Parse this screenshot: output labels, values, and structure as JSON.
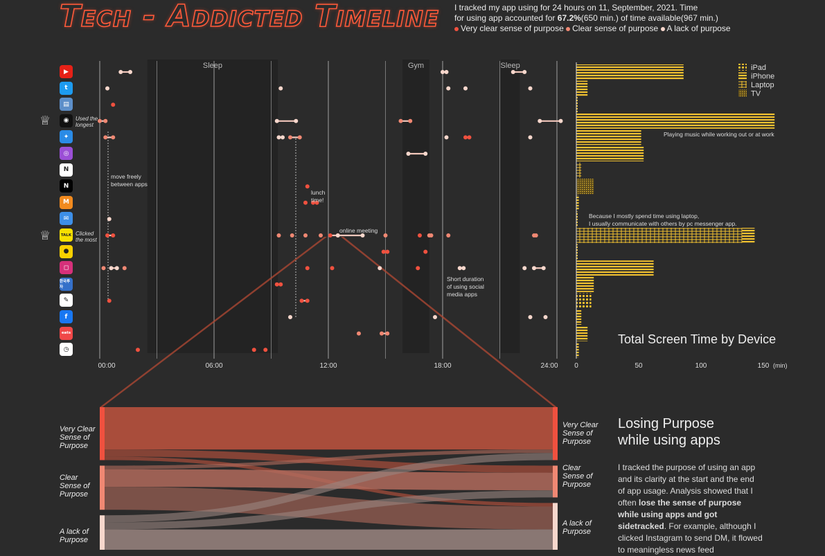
{
  "title": "Tech - Addicted Timeline",
  "intro": {
    "line1": "I tracked my app using for 24 hours on 11, September, 2021. Time",
    "line2_pre": "for using app accounted for ",
    "line2_bold": "67.2%",
    "line2_post": "(650 min.) of time available(967 min.)",
    "legend": [
      {
        "label": "Very clear sense of purpose",
        "color": "#f0513f"
      },
      {
        "label": "Clear sense of purpose",
        "color": "#f08873"
      },
      {
        "label": "A lack of purpose",
        "color": "#f7d7cc"
      }
    ]
  },
  "apps": [
    {
      "name": "YouTube",
      "icon": "youtube-icon",
      "bg": "#e62117",
      "glyph": "▶"
    },
    {
      "name": "Twitter",
      "icon": "twitter-icon",
      "bg": "#1d9bf0",
      "glyph": "t"
    },
    {
      "name": "Bus",
      "icon": "bus-icon",
      "bg": "#5d8fc9",
      "glyph": "▤"
    },
    {
      "name": "Spotify",
      "icon": "spotify-icon",
      "bg": "#111111",
      "glyph": "◉"
    },
    {
      "name": "Safari",
      "icon": "safari-icon",
      "bg": "#2a8be6",
      "glyph": "✦"
    },
    {
      "name": "Podcasts",
      "icon": "podcast-icon",
      "bg": "#9b4fd6",
      "glyph": "◎"
    },
    {
      "name": "Notion",
      "icon": "notion-icon",
      "bg": "#ffffff",
      "glyph": "N"
    },
    {
      "name": "Netflix",
      "icon": "netflix-icon",
      "bg": "#000000",
      "glyph": "N"
    },
    {
      "name": "Market",
      "icon": "market-icon",
      "bg": "#f28a1e",
      "glyph": "M"
    },
    {
      "name": "Mail",
      "icon": "mail-icon",
      "bg": "#3d8fe8",
      "glyph": "✉"
    },
    {
      "name": "KakaoTalk",
      "icon": "kakaotalk-icon",
      "bg": "#f9e000",
      "glyph": "TALK"
    },
    {
      "name": "KakaoMap",
      "icon": "map-pin-icon",
      "bg": "#f9d100",
      "glyph": "●"
    },
    {
      "name": "Instagram",
      "icon": "instagram-icon",
      "bg": "#d6307a",
      "glyph": "◻"
    },
    {
      "name": "Korea Invest",
      "icon": "invest-icon",
      "bg": "#3470c9",
      "glyph": "한국투자"
    },
    {
      "name": "Notes",
      "icon": "notes-icon",
      "bg": "#ffffff",
      "glyph": "✎"
    },
    {
      "name": "Facebook",
      "icon": "facebook-icon",
      "bg": "#1877f2",
      "glyph": "f"
    },
    {
      "name": "Shopping eats",
      "icon": "eats-icon",
      "bg": "#f04848",
      "glyph": "eats"
    },
    {
      "name": "Clock",
      "icon": "clock-icon",
      "bg": "#ffffff",
      "glyph": "◷"
    }
  ],
  "side_notes": [
    {
      "text1": "Used the",
      "text2": "longest",
      "row": 3
    },
    {
      "text1": "Clicked",
      "text2": "the most",
      "row": 10
    }
  ],
  "regions": [
    {
      "label": "Sleep",
      "start": 2.5,
      "end": 9.35
    },
    {
      "label": "Gym",
      "start": 15.9,
      "end": 17.3
    },
    {
      "label": "Sleep",
      "start": 21.05,
      "end": 22.05
    }
  ],
  "x_ticks": [
    "00:00",
    "06:00",
    "12:00",
    "18:00",
    "24:00"
  ],
  "annotations": [
    {
      "text1": "move freely",
      "text2": "between apps",
      "text3": ""
    },
    {
      "text1": "lunch",
      "text2": "time!",
      "text3": ""
    },
    {
      "text1": "online meeting",
      "text2": "",
      "text3": ""
    },
    {
      "text1": "Short duration",
      "text2": "of using social",
      "text3": "media apps"
    }
  ],
  "chart_data": [
    {
      "type": "scatter",
      "title": "Tech - Addicted Timeline",
      "x_unit": "hour of day",
      "xlim": [
        0,
        24
      ],
      "categories": [
        "YouTube",
        "Twitter",
        "Bus",
        "Spotify",
        "Safari",
        "Podcasts",
        "Notion",
        "Netflix",
        "Market",
        "Mail",
        "KakaoTalk",
        "KakaoMap",
        "Instagram",
        "Korea Invest",
        "Notes",
        "Facebook",
        "Shopping eats",
        "Clock"
      ],
      "sessions": [
        {
          "app": 0,
          "start": 1.1,
          "end": 1.6,
          "purpose": "lack"
        },
        {
          "app": 0,
          "start": 18.0,
          "end": 18.2,
          "purpose": "lack"
        },
        {
          "app": 0,
          "start": 21.7,
          "end": 22.3,
          "purpose": "lack"
        },
        {
          "app": 1,
          "start": 0.4,
          "end": 0.4,
          "purpose": "lack"
        },
        {
          "app": 1,
          "start": 9.5,
          "end": 9.5,
          "purpose": "lack"
        },
        {
          "app": 1,
          "start": 18.3,
          "end": 18.3,
          "purpose": "lack"
        },
        {
          "app": 1,
          "start": 19.2,
          "end": 19.2,
          "purpose": "lack"
        },
        {
          "app": 1,
          "start": 22.6,
          "end": 22.6,
          "purpose": "lack"
        },
        {
          "app": 2,
          "start": 0.7,
          "end": 0.7,
          "purpose": "very_clear"
        },
        {
          "app": 3,
          "start": 0.0,
          "end": 0.3,
          "purpose": "clear"
        },
        {
          "app": 3,
          "start": 9.3,
          "end": 10.3,
          "purpose": "lack"
        },
        {
          "app": 3,
          "start": 15.8,
          "end": 16.3,
          "purpose": "clear"
        },
        {
          "app": 3,
          "start": 23.1,
          "end": 24.2,
          "purpose": "lack"
        },
        {
          "app": 4,
          "start": 0.3,
          "end": 0.7,
          "purpose": "clear"
        },
        {
          "app": 4,
          "start": 9.4,
          "end": 9.6,
          "purpose": "lack"
        },
        {
          "app": 4,
          "start": 10.0,
          "end": 10.5,
          "purpose": "clear"
        },
        {
          "app": 4,
          "start": 18.2,
          "end": 18.2,
          "purpose": "lack"
        },
        {
          "app": 4,
          "start": 19.2,
          "end": 19.4,
          "purpose": "very_clear"
        },
        {
          "app": 4,
          "start": 22.6,
          "end": 22.6,
          "purpose": "lack"
        },
        {
          "app": 5,
          "start": 16.2,
          "end": 17.1,
          "purpose": "lack"
        },
        {
          "app": 7,
          "start": 10.9,
          "end": 10.9,
          "purpose": "very_clear"
        },
        {
          "app": 8,
          "start": 11.2,
          "end": 11.4,
          "purpose": "very_clear"
        },
        {
          "app": 8,
          "start": 10.8,
          "end": 10.8,
          "purpose": "very_clear"
        },
        {
          "app": 9,
          "start": 0.5,
          "end": 0.5,
          "purpose": "lack"
        },
        {
          "app": 10,
          "start": 0.4,
          "end": 0.7,
          "purpose": "very_clear"
        },
        {
          "app": 10,
          "start": 9.4,
          "end": 9.4,
          "purpose": "clear"
        },
        {
          "app": 10,
          "start": 10.1,
          "end": 10.1,
          "purpose": "clear"
        },
        {
          "app": 10,
          "start": 10.8,
          "end": 10.8,
          "purpose": "clear"
        },
        {
          "app": 10,
          "start": 11.6,
          "end": 11.6,
          "purpose": "clear"
        },
        {
          "app": 10,
          "start": 12.1,
          "end": 12.5,
          "purpose": "very_clear"
        },
        {
          "app": 10,
          "start": 12.5,
          "end": 13.8,
          "purpose": "lack"
        },
        {
          "app": 10,
          "start": 15.0,
          "end": 15.0,
          "purpose": "clear"
        },
        {
          "app": 10,
          "start": 16.8,
          "end": 16.8,
          "purpose": "very_clear"
        },
        {
          "app": 10,
          "start": 17.3,
          "end": 17.4,
          "purpose": "clear"
        },
        {
          "app": 10,
          "start": 18.3,
          "end": 18.3,
          "purpose": "clear"
        },
        {
          "app": 10,
          "start": 22.8,
          "end": 22.9,
          "purpose": "clear"
        },
        {
          "app": 11,
          "start": 14.9,
          "end": 15.1,
          "purpose": "very_clear"
        },
        {
          "app": 11,
          "start": 17.1,
          "end": 17.1,
          "purpose": "very_clear"
        },
        {
          "app": 12,
          "start": 0.2,
          "end": 0.2,
          "purpose": "clear"
        },
        {
          "app": 12,
          "start": 0.6,
          "end": 0.9,
          "purpose": "lack"
        },
        {
          "app": 12,
          "start": 1.3,
          "end": 1.3,
          "purpose": "clear"
        },
        {
          "app": 12,
          "start": 10.9,
          "end": 10.9,
          "purpose": "very_clear"
        },
        {
          "app": 12,
          "start": 12.2,
          "end": 12.2,
          "purpose": "very_clear"
        },
        {
          "app": 12,
          "start": 14.7,
          "end": 14.7,
          "purpose": "lack"
        },
        {
          "app": 12,
          "start": 16.7,
          "end": 16.7,
          "purpose": "very_clear"
        },
        {
          "app": 12,
          "start": 18.9,
          "end": 19.1,
          "purpose": "lack"
        },
        {
          "app": 12,
          "start": 22.3,
          "end": 22.3,
          "purpose": "lack"
        },
        {
          "app": 12,
          "start": 22.8,
          "end": 23.3,
          "purpose": "lack"
        },
        {
          "app": 13,
          "start": 9.3,
          "end": 9.5,
          "purpose": "very_clear"
        },
        {
          "app": 14,
          "start": 10.6,
          "end": 10.9,
          "purpose": "very_clear"
        },
        {
          "app": 14,
          "start": 0.5,
          "end": 0.5,
          "purpose": "very_clear"
        },
        {
          "app": 15,
          "start": 10.0,
          "end": 10.0,
          "purpose": "lack"
        },
        {
          "app": 15,
          "start": 17.6,
          "end": 17.6,
          "purpose": "lack"
        },
        {
          "app": 15,
          "start": 22.6,
          "end": 22.6,
          "purpose": "lack"
        },
        {
          "app": 15,
          "start": 23.4,
          "end": 23.4,
          "purpose": "lack"
        },
        {
          "app": 16,
          "start": 13.6,
          "end": 13.6,
          "purpose": "clear"
        },
        {
          "app": 16,
          "start": 14.8,
          "end": 15.1,
          "purpose": "clear"
        },
        {
          "app": 17,
          "start": 2.0,
          "end": 2.0,
          "purpose": "very_clear"
        },
        {
          "app": 17,
          "start": 8.1,
          "end": 8.1,
          "purpose": "very_clear"
        },
        {
          "app": 17,
          "start": 8.7,
          "end": 8.7,
          "purpose": "very_clear"
        }
      ],
      "purpose_colors": {
        "very_clear": "#f0513f",
        "clear": "#f08873",
        "lack": "#f7d7cc"
      }
    },
    {
      "type": "bar",
      "title": "Total Screen Time by Device",
      "xlabel": "(min)",
      "xlim": [
        0,
        150
      ],
      "x_ticks": [
        0,
        50,
        100,
        150
      ],
      "devices": [
        {
          "name": "iPad",
          "pattern": "dots"
        },
        {
          "name": "iPhone",
          "pattern": "lines"
        },
        {
          "name": "Laptop",
          "pattern": "grid"
        },
        {
          "name": "TV",
          "pattern": "hatch"
        }
      ],
      "values": [
        {
          "app": 0,
          "device": "iPhone",
          "value": 86
        },
        {
          "app": 1,
          "device": "iPhone",
          "value": 9
        },
        {
          "app": 2,
          "device": "iPhone",
          "value": 1
        },
        {
          "app": 3,
          "device": "iPhone",
          "value": 159
        },
        {
          "app": 4,
          "device": "iPhone",
          "value": 52
        },
        {
          "app": 5,
          "device": "iPhone",
          "value": 54
        },
        {
          "app": 6,
          "device": "Laptop",
          "value": 4
        },
        {
          "app": 7,
          "device": "TV",
          "value": 14
        },
        {
          "app": 8,
          "device": "iPhone",
          "value": 2
        },
        {
          "app": 9,
          "device": "iPhone",
          "value": 1
        },
        {
          "app": 10,
          "device": "Laptop",
          "value": 133
        },
        {
          "app": 10,
          "device": "iPhone",
          "value": 10
        },
        {
          "app": 11,
          "device": "iPhone",
          "value": 1
        },
        {
          "app": 12,
          "device": "iPhone",
          "value": 62
        },
        {
          "app": 13,
          "device": "iPhone",
          "value": 14
        },
        {
          "app": 14,
          "device": "iPad",
          "value": 12
        },
        {
          "app": 15,
          "device": "iPhone",
          "value": 4
        },
        {
          "app": 16,
          "device": "iPhone",
          "value": 9
        },
        {
          "app": 17,
          "device": "iPhone",
          "value": 2
        }
      ],
      "notes": [
        "Playing music while working out or at work",
        "Because I mostly spend time using laptop,",
        "I usually communicate with others by pc messenger app."
      ]
    },
    {
      "type": "sankey",
      "left_labels": [
        "Very Clear Sense of Purpose",
        "Clear Sense of Purpose",
        "A lack of Purpose"
      ],
      "right_labels": [
        "Very Clear Sense of Purpose",
        "Clear Sense of Purpose",
        "A lack of Purpose"
      ],
      "left_values": [
        30,
        25,
        30
      ],
      "right_values": [
        30,
        18,
        37
      ],
      "flows": [
        {
          "from": 0,
          "to": 0,
          "value": 24
        },
        {
          "from": 0,
          "to": 1,
          "value": 4
        },
        {
          "from": 0,
          "to": 2,
          "value": 2
        },
        {
          "from": 1,
          "to": 0,
          "value": 2
        },
        {
          "from": 1,
          "to": 1,
          "value": 10
        },
        {
          "from": 1,
          "to": 2,
          "value": 13
        },
        {
          "from": 2,
          "to": 0,
          "value": 4
        },
        {
          "from": 2,
          "to": 1,
          "value": 4
        },
        {
          "from": 2,
          "to": 2,
          "value": 22
        }
      ]
    }
  ],
  "screen_title": "Total Screen Time by Device",
  "section": {
    "title1": "Losing Purpose",
    "title2": "while using apps",
    "body_pre": "I tracked the purpose of using an app and its clarity at the start and the end of app usage. Analysis showed that I often ",
    "body_bold": "lose the sense of purpose while using apps and got sidetracked",
    "body_post": ". For example, although I clicked Instagram to send DM, it flowed to meaningless news feed"
  },
  "flow_labels": {
    "left": [
      "Very Clear|Sense of|Purpose",
      "Clear|Sense of|Purpose",
      "A lack of|Purpose"
    ],
    "right": [
      "Very Clear|Sense of|Purpose",
      "Clear|Sense of|Purpose",
      "A lack of|Purpose"
    ]
  }
}
